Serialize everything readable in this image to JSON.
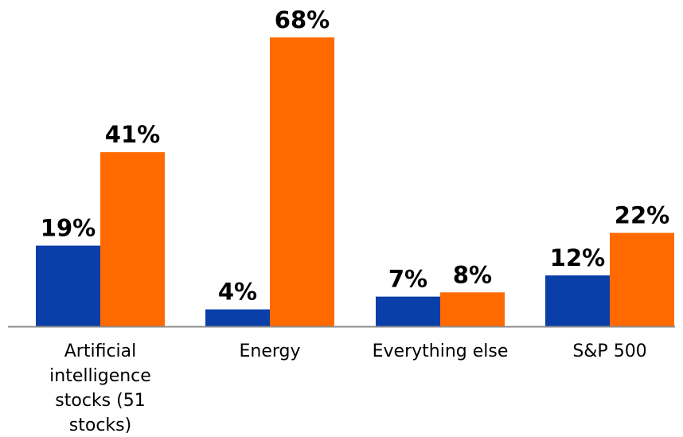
{
  "chart_data": {
    "type": "bar",
    "categories": [
      "Artificial intelligence stocks (51 stocks)",
      "Energy",
      "Everything else",
      "S&P 500"
    ],
    "category_label_lines": [
      [
        "Artificial",
        "intelligence",
        "stocks (51",
        "stocks)"
      ],
      [
        "Energy"
      ],
      [
        "Everything else"
      ],
      [
        "S&P 500"
      ]
    ],
    "series": [
      {
        "values": [
          19,
          4,
          7,
          12
        ],
        "color": "#0A3EA8"
      },
      {
        "values": [
          41,
          68,
          8,
          22
        ],
        "color": "#FF6A00"
      }
    ],
    "value_labels": [
      [
        "19%",
        "4%",
        "7%",
        "12%"
      ],
      [
        "41%",
        "68%",
        "8%",
        "22%"
      ]
    ],
    "ylim": [
      0,
      68
    ],
    "grid": false,
    "legend": "none",
    "axis_color": "#8c8c8c"
  }
}
